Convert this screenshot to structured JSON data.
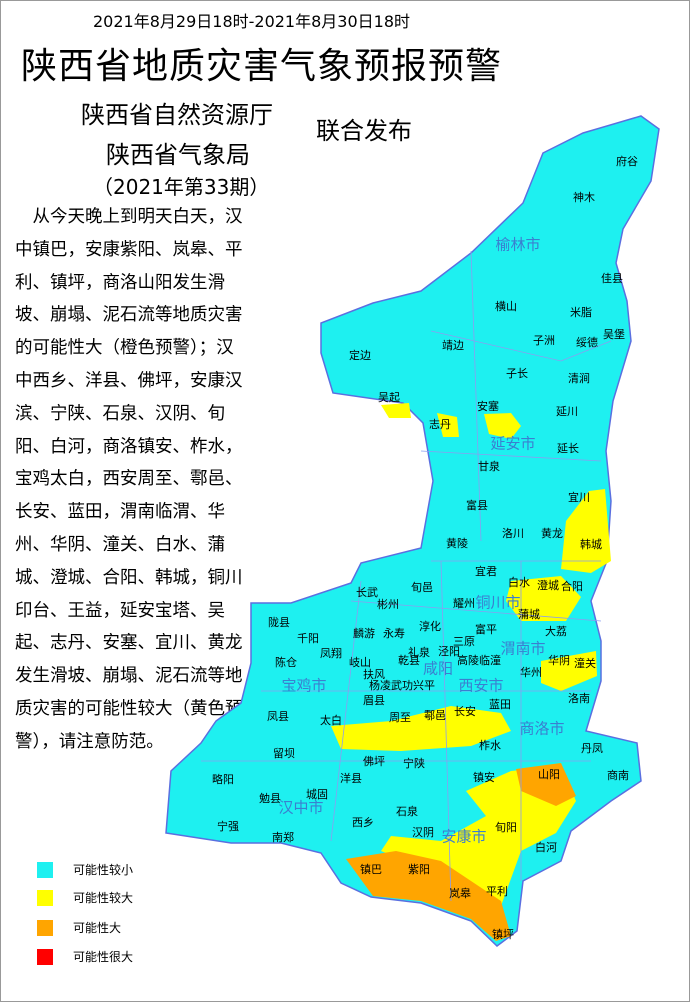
{
  "header": {
    "date_range": "2021年8月29日18时-2021年8月30日18时",
    "title": "陕西省地质灾害气象预报预警",
    "issuer_1": "陕西省自然资源厅",
    "issuer_2": "陕西省气象局",
    "joint_release": "联合发布",
    "issue_number": "（2021年第33期）"
  },
  "bulletin_lines": [
    "　从今天晚上到明天白天，汉",
    "中镇巴，安康紫阳、岚皋、平",
    "利、镇坪，商洛山阳发生滑",
    "坡、崩塌、泥石流等地质灾害",
    "的可能性大（橙色预警）；汉",
    "中西乡、洋县、佛坪，安康汉",
    "滨、宁陕、石泉、汉阴、旬",
    "阳、白河，商洛镇安、柞水，",
    "宝鸡太白，西安周至、鄠邑、",
    "长安、蓝田，渭南临渭、华",
    "州、华阴、潼关、白水、蒲",
    "城、澄城、合阳、韩城，铜川",
    "印台、王益，延安宝塔、吴",
    "起、志丹、安塞、宜川、黄龙",
    "发生滑坡、崩塌、泥石流等地",
    "质灾害的可能性较大（黄色预",
    "警），请注意防范。"
  ],
  "map": {
    "cities": [
      "榆林市",
      "延安市",
      "铜川市",
      "渭南市",
      "宝鸡市",
      "咸阳",
      "西安市",
      "商洛市",
      "汉中市",
      "安康市"
    ],
    "counties": [
      "府谷",
      "神木",
      "佳县",
      "横山",
      "米脂",
      "吴堡",
      "定边",
      "靖边",
      "子洲",
      "绥德",
      "子长",
      "清涧",
      "吴起",
      "志丹",
      "安塞",
      "延川",
      "延长",
      "甘泉",
      "宜川",
      "富县",
      "洛川",
      "黄龙",
      "黄陵",
      "韩城",
      "宜君",
      "白水",
      "澄城",
      "合阳",
      "长武",
      "旬邑",
      "耀州",
      "彬州",
      "蒲城",
      "陇县",
      "麟游",
      "永寿",
      "淳化",
      "富平",
      "大荔",
      "千阳",
      "三原",
      "凤翔",
      "礼泉",
      "泾阳",
      "陈仓",
      "岐山",
      "扶风",
      "乾县",
      "高陵临潼",
      "华阴",
      "潼关",
      "杨凌武功兴平",
      "华州",
      "眉县",
      "蓝田",
      "洛南",
      "凤县",
      "太白",
      "周至",
      "鄠邑",
      "长安",
      "丹凤",
      "留坝",
      "佛坪",
      "宁陕",
      "柞水",
      "略阳",
      "镇安",
      "山阳",
      "商南",
      "洋县",
      "城固",
      "勉县",
      "石泉",
      "西乡",
      "旬阳",
      "汉阴",
      "宁强",
      "南郑",
      "白河",
      "镇巴",
      "紫阳",
      "岚皋",
      "平利",
      "镇坪"
    ]
  },
  "legend": [
    {
      "label": "可能性较小",
      "color": "#1ef0f0"
    },
    {
      "label": "可能性较大",
      "color": "#ffff00"
    },
    {
      "label": "可能性大",
      "color": "#ffa500"
    },
    {
      "label": "可能性很大",
      "color": "#ff0000"
    }
  ],
  "colors": {
    "city_label": "#3a7fd0",
    "border": "#6a7fd8"
  }
}
